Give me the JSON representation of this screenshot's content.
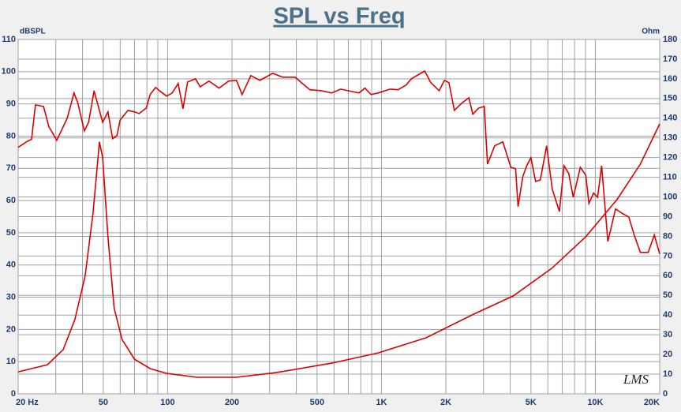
{
  "chart_data": {
    "type": "line",
    "title": "SPL vs Freq",
    "ylabel": "dBSPL",
    "y2label": "Ohm",
    "watermark": "LMS",
    "xscale": "log",
    "grid": true,
    "xlim": [
      20,
      20000
    ],
    "xticks": [
      {
        "value": 20,
        "label": "20 Hz"
      },
      50,
      100,
      200,
      500,
      {
        "value": 1000,
        "label": "1K"
      },
      {
        "value": 2000,
        "label": "2K"
      },
      {
        "value": 5000,
        "label": "5K"
      },
      {
        "value": 10000,
        "label": "10K"
      },
      {
        "value": 20000,
        "label": "20K"
      }
    ],
    "xgrid": [
      20,
      30,
      40,
      50,
      60,
      70,
      80,
      90,
      100,
      200,
      300,
      400,
      500,
      600,
      700,
      800,
      900,
      1000,
      2000,
      3000,
      4000,
      5000,
      6000,
      7000,
      8000,
      9000,
      10000,
      20000
    ],
    "ylim": [
      0,
      110
    ],
    "yticks": [
      0,
      10,
      20,
      30,
      40,
      50,
      60,
      70,
      80,
      90,
      100,
      110
    ],
    "y2lim": [
      0,
      180
    ],
    "y2ticks": [
      0,
      10,
      20,
      30,
      40,
      50,
      60,
      70,
      80,
      90,
      100,
      110,
      120,
      130,
      140,
      150,
      160,
      170,
      180
    ],
    "series": [
      {
        "color": "#dd0000",
        "x": [
          20,
          22.1,
          23.1,
          24.1,
          26.3,
          27.8,
          30.3,
          33.9,
          36.5,
          38,
          40.8,
          42.7,
          45.3,
          49.7,
          52.6,
          55.3,
          57.9,
          60,
          65.3,
          69.9,
          73.6,
          79.5,
          82.9,
          87.9,
          92.4,
          99,
          105,
          112,
          118,
          124,
          135,
          142,
          156,
          174,
          193,
          210,
          223,
          245,
          270,
          310,
          345,
          395,
          419,
          463,
          522,
          585,
          645,
          696,
          784,
          838,
          893,
          966,
          1097,
          1195,
          1300,
          1380,
          1593,
          1700,
          1860,
          1970,
          2067,
          2192,
          2391,
          2563,
          2674,
          2845,
          3025,
          3133,
          3385,
          3693,
          4028,
          4238,
          4350,
          4580,
          4780,
          5000,
          5260,
          5530,
          5920,
          6290,
          6790,
          7140,
          7510,
          7890,
          8510,
          9020,
          9330,
          9810,
          10250,
          10700,
          11440,
          12440,
          13290,
          14330,
          15200,
          16240,
          17660,
          18880,
          20000
        ],
        "values": [
          76.5,
          78.4,
          79,
          89.7,
          89.2,
          83,
          78.7,
          85.5,
          93.4,
          90.4,
          81.6,
          84.3,
          94.1,
          84.3,
          87.5,
          79.2,
          80.1,
          85,
          88,
          87.5,
          87,
          88.7,
          92.9,
          95.1,
          93.9,
          92.4,
          93.4,
          96.3,
          88.5,
          96.8,
          97.8,
          95.3,
          97.1,
          94.9,
          97.1,
          97.3,
          92.9,
          98.8,
          97.3,
          99.5,
          98.3,
          98.3,
          96.8,
          94.4,
          94.1,
          93.4,
          94.6,
          94.1,
          93.4,
          94.9,
          92.9,
          93.4,
          94.6,
          94.4,
          95.8,
          97.8,
          100.2,
          96.6,
          94.1,
          97.3,
          96.6,
          88,
          90.4,
          91.9,
          86.8,
          88.7,
          89.2,
          71.3,
          77,
          78.2,
          70.3,
          69.9,
          58.1,
          67.4,
          70.8,
          73.3,
          65.9,
          66.4,
          77,
          63.5,
          56.6,
          70.8,
          68.4,
          61,
          70.3,
          67.9,
          59.1,
          62.3,
          61,
          70.8,
          47.3,
          57.4,
          56.1,
          54.9,
          49.3,
          43.9,
          43.9,
          49.3,
          43.4
        ]
      },
      {
        "color": "#dd0000",
        "axis": "y2",
        "x": [
          20,
          27.4,
          32.5,
          36.8,
          41.1,
          44.8,
          48,
          49.7,
          52.6,
          56.2,
          61.2,
          70,
          83,
          99,
          137,
          210,
          322,
          585,
          966,
          1620,
          2700,
          4130,
          6260,
          9020,
          12620,
          16240,
          20000
        ],
        "values": [
          11.2,
          14.8,
          22.5,
          37.7,
          59.7,
          91.8,
          128,
          120,
          79.8,
          43.7,
          27.7,
          17.6,
          12.8,
          10.4,
          8.4,
          8.4,
          10.8,
          15.6,
          20.8,
          28.5,
          40.5,
          49.7,
          63.8,
          79.8,
          98.6,
          116.7,
          137.1
        ]
      }
    ]
  }
}
